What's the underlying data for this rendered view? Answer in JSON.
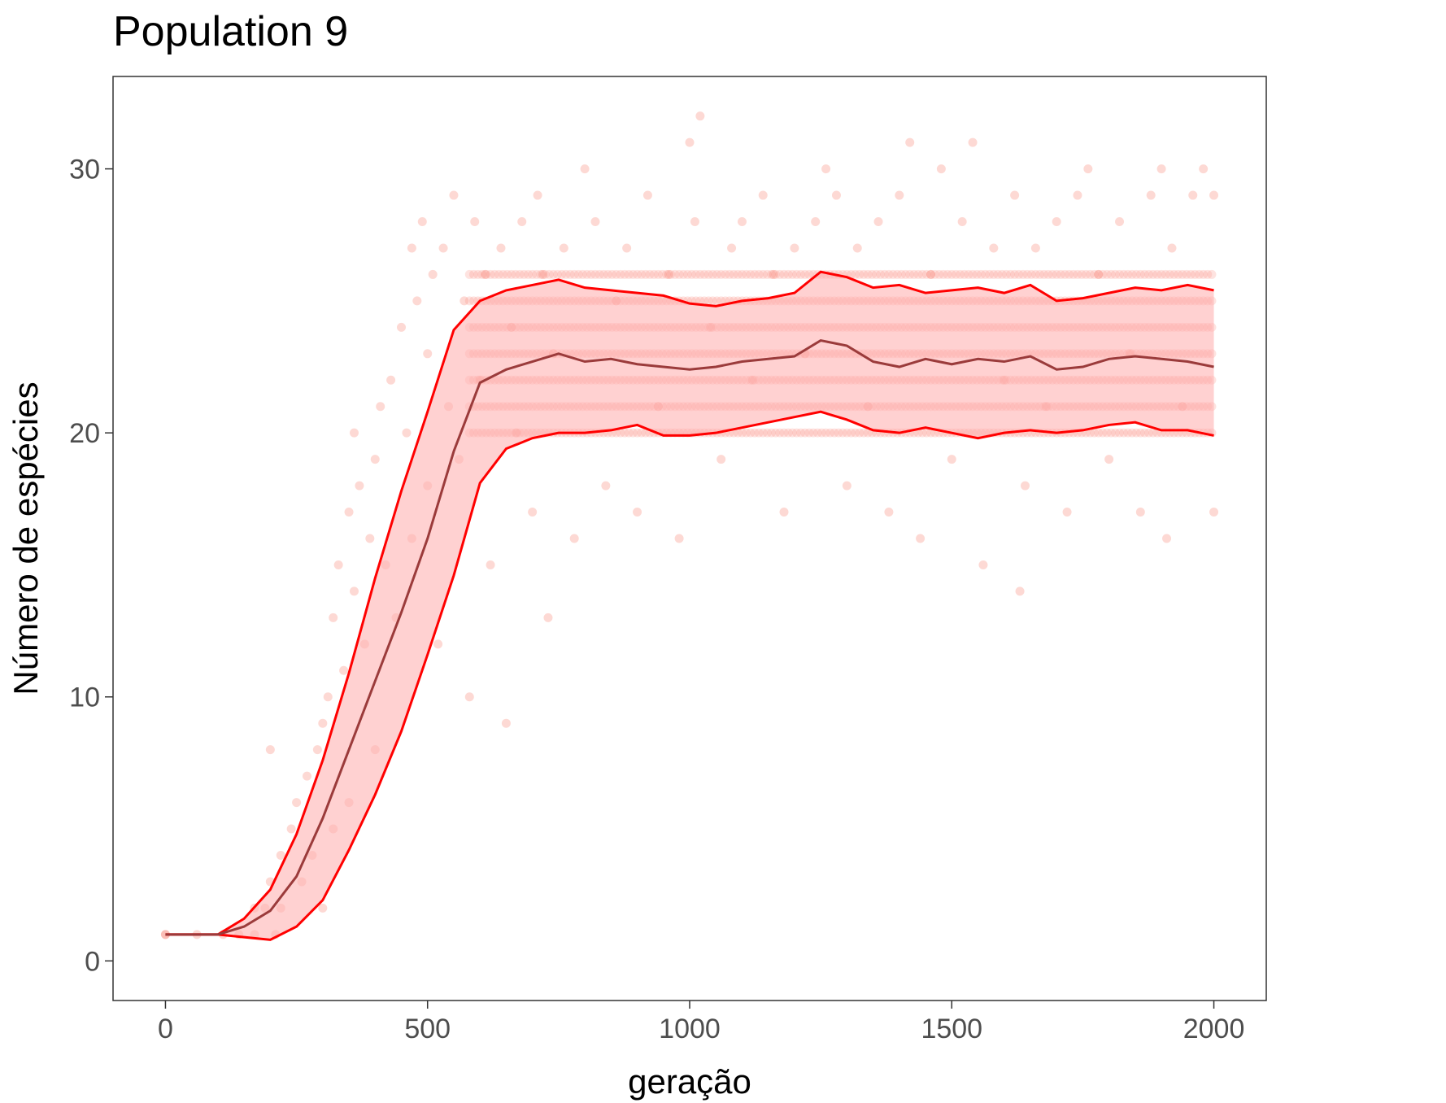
{
  "chart_data": {
    "type": "scatter",
    "title": "Population 9",
    "xlabel": "geração",
    "ylabel": "Número de espécies",
    "xlim": [
      -100,
      2100
    ],
    "ylim": [
      -1.5,
      33.5
    ],
    "xticks": [
      0,
      500,
      1000,
      1500,
      2000
    ],
    "xtick_labels": [
      "0",
      "500",
      "1000",
      "1500",
      "2000"
    ],
    "yticks": [
      0,
      10,
      20,
      30
    ],
    "ytick_labels": [
      "0",
      "10",
      "20",
      "30"
    ],
    "grid": false,
    "legend": "none",
    "colors": {
      "points": "#fa8072",
      "band_fill": "#ffb3b3",
      "band_edge": "#ff0000",
      "mean_line": "#9b3b3b"
    },
    "series": [
      {
        "role": "mean",
        "x": [
          0,
          100,
          150,
          200,
          250,
          300,
          350,
          400,
          450,
          500,
          550,
          600,
          650,
          700,
          750,
          800,
          850,
          900,
          950,
          1000,
          1050,
          1100,
          1150,
          1200,
          1250,
          1300,
          1350,
          1400,
          1450,
          1500,
          1550,
          1600,
          1650,
          1700,
          1750,
          1800,
          1850,
          1900,
          1950,
          2000
        ],
        "y": [
          1,
          1,
          1.3,
          1.9,
          3.2,
          5.4,
          8.0,
          10.6,
          13.2,
          16.0,
          19.3,
          21.9,
          22.4,
          22.7,
          23.0,
          22.7,
          22.8,
          22.6,
          22.5,
          22.4,
          22.5,
          22.7,
          22.8,
          22.9,
          23.5,
          23.3,
          22.7,
          22.5,
          22.8,
          22.6,
          22.8,
          22.7,
          22.9,
          22.4,
          22.5,
          22.8,
          22.9,
          22.8,
          22.7,
          22.5
        ]
      },
      {
        "role": "upper",
        "x": [
          0,
          100,
          150,
          200,
          250,
          300,
          350,
          400,
          450,
          500,
          550,
          600,
          650,
          700,
          750,
          800,
          850,
          900,
          950,
          1000,
          1050,
          1100,
          1150,
          1200,
          1250,
          1300,
          1350,
          1400,
          1450,
          1500,
          1550,
          1600,
          1650,
          1700,
          1750,
          1800,
          1850,
          1900,
          1950,
          2000
        ],
        "y": [
          1,
          1,
          1.6,
          2.7,
          4.8,
          7.6,
          10.9,
          14.5,
          17.8,
          20.8,
          23.9,
          25.0,
          25.4,
          25.6,
          25.8,
          25.5,
          25.4,
          25.3,
          25.2,
          24.9,
          24.8,
          25.0,
          25.1,
          25.3,
          26.1,
          25.9,
          25.5,
          25.6,
          25.3,
          25.4,
          25.5,
          25.3,
          25.6,
          25.0,
          25.1,
          25.3,
          25.5,
          25.4,
          25.6,
          25.4
        ]
      },
      {
        "role": "lower",
        "x": [
          0,
          100,
          150,
          200,
          250,
          300,
          350,
          400,
          450,
          500,
          550,
          600,
          650,
          700,
          750,
          800,
          850,
          900,
          950,
          1000,
          1050,
          1100,
          1150,
          1200,
          1250,
          1300,
          1350,
          1400,
          1450,
          1500,
          1550,
          1600,
          1650,
          1700,
          1750,
          1800,
          1850,
          1900,
          1950,
          2000
        ],
        "y": [
          1,
          1,
          0.9,
          0.8,
          1.3,
          2.3,
          4.2,
          6.3,
          8.7,
          11.6,
          14.6,
          18.1,
          19.4,
          19.8,
          20.0,
          20.0,
          20.1,
          20.3,
          19.9,
          19.9,
          20.0,
          20.2,
          20.4,
          20.6,
          20.8,
          20.5,
          20.1,
          20.0,
          20.2,
          20.0,
          19.8,
          20.0,
          20.1,
          20.0,
          20.1,
          20.3,
          20.4,
          20.1,
          20.1,
          19.9
        ]
      }
    ],
    "scatter_points": [
      [
        0,
        1
      ],
      [
        0,
        1
      ],
      [
        60,
        1
      ],
      [
        110,
        1
      ],
      [
        140,
        1
      ],
      [
        170,
        1
      ],
      [
        170,
        2
      ],
      [
        190,
        2
      ],
      [
        200,
        8
      ],
      [
        200,
        3
      ],
      [
        210,
        1
      ],
      [
        220,
        4
      ],
      [
        220,
        2
      ],
      [
        240,
        5
      ],
      [
        250,
        6
      ],
      [
        260,
        3
      ],
      [
        270,
        7
      ],
      [
        280,
        4
      ],
      [
        290,
        8
      ],
      [
        300,
        9
      ],
      [
        300,
        2
      ],
      [
        310,
        10
      ],
      [
        320,
        13
      ],
      [
        320,
        5
      ],
      [
        330,
        15
      ],
      [
        340,
        11
      ],
      [
        350,
        17
      ],
      [
        350,
        6
      ],
      [
        360,
        20
      ],
      [
        360,
        14
      ],
      [
        370,
        18
      ],
      [
        380,
        12
      ],
      [
        390,
        16
      ],
      [
        400,
        19
      ],
      [
        400,
        8
      ],
      [
        410,
        21
      ],
      [
        420,
        15
      ],
      [
        430,
        22
      ],
      [
        440,
        13
      ],
      [
        450,
        24
      ],
      [
        460,
        20
      ],
      [
        470,
        27
      ],
      [
        470,
        16
      ],
      [
        480,
        25
      ],
      [
        490,
        28
      ],
      [
        500,
        23
      ],
      [
        500,
        18
      ],
      [
        510,
        26
      ],
      [
        520,
        12
      ],
      [
        530,
        27
      ],
      [
        540,
        21
      ],
      [
        550,
        29
      ],
      [
        560,
        19
      ],
      [
        570,
        25
      ],
      [
        580,
        10
      ],
      [
        590,
        28
      ],
      [
        600,
        22
      ],
      [
        610,
        26
      ],
      [
        620,
        15
      ],
      [
        640,
        27
      ],
      [
        650,
        9
      ],
      [
        660,
        24
      ],
      [
        670,
        20
      ],
      [
        680,
        28
      ],
      [
        700,
        17
      ],
      [
        710,
        29
      ],
      [
        720,
        26
      ],
      [
        730,
        13
      ],
      [
        740,
        23
      ],
      [
        760,
        27
      ],
      [
        780,
        16
      ],
      [
        800,
        30
      ],
      [
        820,
        28
      ],
      [
        840,
        18
      ],
      [
        860,
        25
      ],
      [
        880,
        27
      ],
      [
        900,
        17
      ],
      [
        920,
        29
      ],
      [
        940,
        21
      ],
      [
        960,
        26
      ],
      [
        980,
        16
      ],
      [
        1000,
        31
      ],
      [
        1010,
        28
      ],
      [
        1020,
        32
      ],
      [
        1040,
        24
      ],
      [
        1060,
        19
      ],
      [
        1080,
        27
      ],
      [
        1100,
        28
      ],
      [
        1120,
        22
      ],
      [
        1140,
        29
      ],
      [
        1160,
        26
      ],
      [
        1180,
        17
      ],
      [
        1200,
        27
      ],
      [
        1220,
        23
      ],
      [
        1240,
        28
      ],
      [
        1260,
        30
      ],
      [
        1280,
        29
      ],
      [
        1300,
        18
      ],
      [
        1320,
        27
      ],
      [
        1340,
        21
      ],
      [
        1360,
        28
      ],
      [
        1380,
        17
      ],
      [
        1400,
        29
      ],
      [
        1420,
        31
      ],
      [
        1440,
        16
      ],
      [
        1460,
        26
      ],
      [
        1480,
        30
      ],
      [
        1500,
        19
      ],
      [
        1520,
        28
      ],
      [
        1540,
        31
      ],
      [
        1560,
        15
      ],
      [
        1580,
        27
      ],
      [
        1600,
        22
      ],
      [
        1620,
        29
      ],
      [
        1630,
        14
      ],
      [
        1640,
        18
      ],
      [
        1660,
        27
      ],
      [
        1680,
        21
      ],
      [
        1700,
        28
      ],
      [
        1720,
        17
      ],
      [
        1740,
        29
      ],
      [
        1760,
        30
      ],
      [
        1780,
        26
      ],
      [
        1800,
        19
      ],
      [
        1820,
        28
      ],
      [
        1840,
        23
      ],
      [
        1860,
        17
      ],
      [
        1880,
        29
      ],
      [
        1900,
        30
      ],
      [
        1910,
        16
      ],
      [
        1920,
        27
      ],
      [
        1940,
        21
      ],
      [
        1960,
        29
      ],
      [
        1980,
        30
      ],
      [
        2000,
        17
      ],
      [
        2000,
        29
      ]
    ],
    "dense_rows": {
      "from_x": 580,
      "to_x": 2000,
      "y_values": [
        20,
        21,
        22,
        23,
        24,
        25,
        26
      ]
    }
  }
}
